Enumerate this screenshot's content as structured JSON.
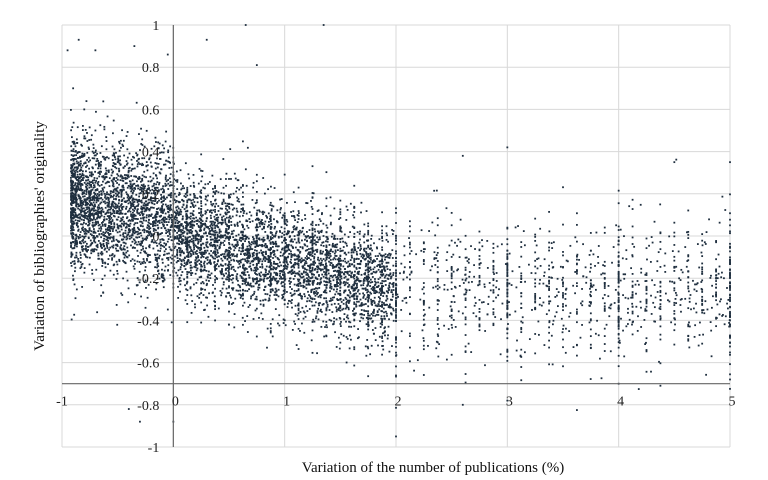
{
  "chart_data": {
    "type": "scatter",
    "xlabel": "Variation of the number of publications (%)",
    "ylabel": "Variation of bibliographies' originality",
    "xlim": [
      -1,
      5
    ],
    "ylim": [
      -1,
      1
    ],
    "x_ticks": [
      -1,
      0,
      1,
      2,
      3,
      4,
      5
    ],
    "y_ticks": [
      -1,
      -0.8,
      -0.6,
      -0.4,
      -0.2,
      0,
      0.2,
      0.4,
      0.6,
      0.8,
      1
    ],
    "x_tick_labels": [
      "-1",
      "0",
      "1",
      "2",
      "3",
      "4",
      "5"
    ],
    "y_tick_labels": [
      "-1",
      "-0.8",
      "-0.6",
      "-0.4",
      "-0.2",
      "0",
      "0.2",
      "0.4",
      "0.6",
      "0.8",
      "1"
    ],
    "grid": true,
    "marker_color": "#1f2f3f",
    "series": [
      {
        "values_summary": "dense cloud of several thousand points",
        "points": [
          [
            -0.95,
            0.88
          ],
          [
            -0.85,
            0.93
          ],
          [
            -0.7,
            0.88
          ],
          [
            -0.35,
            0.9
          ],
          [
            -0.05,
            0.86
          ],
          [
            0.3,
            0.93
          ],
          [
            0.65,
            1.0
          ],
          [
            1.35,
            1.0
          ],
          [
            0.75,
            0.81
          ],
          [
            -0.9,
            0.7
          ],
          [
            -0.8,
            0.6
          ],
          [
            -0.7,
            0.5
          ],
          [
            -0.6,
            0.45
          ],
          [
            -0.5,
            0.35
          ],
          [
            -0.4,
            0.28
          ],
          [
            -0.3,
            0.22
          ],
          [
            -0.2,
            0.18
          ],
          [
            -0.1,
            0.12
          ],
          [
            0.0,
            0.05
          ],
          [
            0.1,
            0.02
          ],
          [
            0.2,
            -0.02
          ],
          [
            0.3,
            -0.05
          ],
          [
            0.4,
            -0.08
          ],
          [
            0.5,
            -0.1
          ],
          [
            0.6,
            -0.12
          ],
          [
            0.8,
            -0.15
          ],
          [
            1.0,
            -0.18
          ],
          [
            1.2,
            -0.2
          ],
          [
            1.4,
            -0.22
          ],
          [
            1.6,
            -0.24
          ],
          [
            1.8,
            -0.25
          ],
          [
            2.0,
            -0.25
          ],
          [
            2.5,
            -0.22
          ],
          [
            3.0,
            -0.22
          ],
          [
            3.5,
            -0.22
          ],
          [
            4.0,
            -0.22
          ],
          [
            4.5,
            -0.22
          ],
          [
            5.0,
            -0.22
          ],
          [
            2.0,
            -0.95
          ],
          [
            -0.3,
            -0.88
          ],
          [
            -0.4,
            -0.82
          ],
          [
            0.0,
            -0.88
          ],
          [
            2.6,
            -0.8
          ],
          [
            3.0,
            -0.78
          ],
          [
            4.0,
            -0.7
          ],
          [
            5.0,
            -0.68
          ],
          [
            3.0,
            0.42
          ],
          [
            4.5,
            0.35
          ],
          [
            5.0,
            0.35
          ],
          [
            2.6,
            0.38
          ]
        ]
      }
    ]
  }
}
